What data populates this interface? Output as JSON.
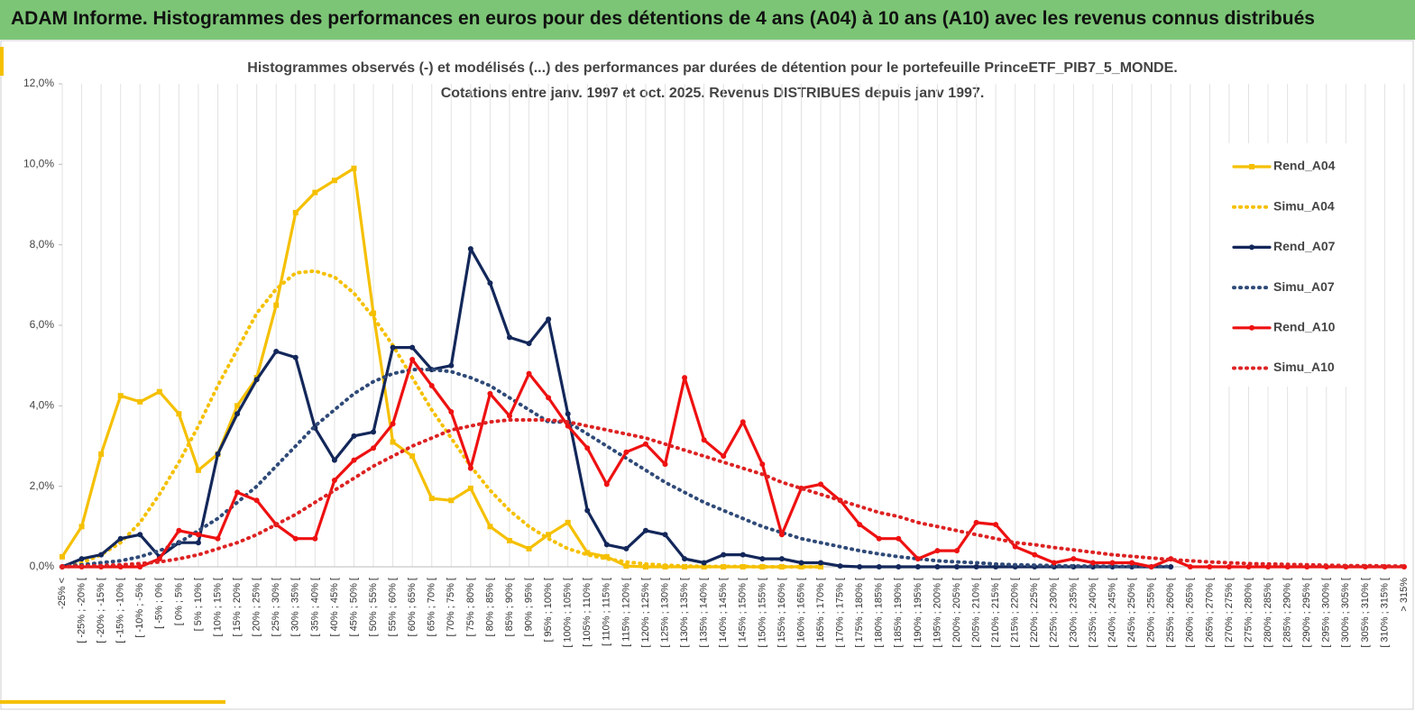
{
  "header": {
    "title": "ADAM Informe. Histogrammes des performances en euros pour des détentions de 4 ans (A04) à 10 ans (A10) avec les revenus connus distribués"
  },
  "chart_data": {
    "type": "line",
    "title": [
      "Histogrammes observés (-) et modélisés (...) des performances par durées de détention pour le portefeuille PrinceETF_PIB7_5_MONDE.",
      "Cotations entre janv. 1997 et oct. 2025. Revenus DISTRIBUES depuis janv 1997."
    ],
    "categories": [
      "-25% <",
      "[ -25% ; -20% [",
      "[ -20% ; -15% [",
      "[ -15% ; -10% [",
      "[ -10% ; -5% [",
      "[ -5% ; 0% [",
      "[ 0% ; 5% [",
      "[ 5% ; 10% [",
      "[ 10% ; 15% [",
      "[ 15% ; 20% [",
      "[ 20% ; 25% [",
      "[ 25% ; 30% [",
      "[ 30% ; 35% [",
      "[ 35% ; 40% [",
      "[ 40% ; 45% [",
      "[ 45% ; 50% [",
      "[ 50% ; 55% [",
      "[ 55% ; 60% [",
      "[ 60% ; 65% [",
      "[ 65% ; 70% [",
      "[ 70% ; 75% [",
      "[ 75% ; 80% [",
      "[ 80% ; 85% [",
      "[ 85% ; 90% [",
      "[ 90% ; 95% [",
      "[ 95% ; 100% [",
      "[ 100% ; 105% [",
      "[ 105% ; 110% [",
      "[ 110% ; 115% [",
      "[ 115% ; 120% [",
      "[ 120% ; 125% [",
      "[ 125% ; 130% [",
      "[ 130% ; 135% [",
      "[ 135% ; 140% [",
      "[ 140% ; 145% [",
      "[ 145% ; 150% [",
      "[ 150% ; 155% [",
      "[ 155% ; 160% [",
      "[ 160% ; 165% [",
      "[ 165% ; 170% [",
      "[ 170% ; 175% [",
      "[ 175% ; 180% [",
      "[ 180% ; 185% [",
      "[ 185% ; 190% [",
      "[ 190% ; 195% [",
      "[ 195% ; 200% [",
      "[ 200% ; 205% [",
      "[ 205% ; 210% [",
      "[ 210% ; 215% [",
      "[ 215% ; 220% [",
      "[ 220% ; 225% [",
      "[ 225% ; 230% [",
      "[ 230% ; 235% [",
      "[ 235% ; 240% [",
      "[ 240% ; 245% [",
      "[ 245% ; 250% [",
      "[ 250% ; 255% [",
      "[ 255% ; 260% [",
      "[ 260% ; 265% [",
      "[ 265% ; 270% [",
      "[ 270% ; 275% [",
      "[ 275% ; 280% [",
      "[ 280% ; 285% [",
      "[ 285% ; 290% [",
      "[ 290% ; 295% [",
      "[ 295% ; 300% [",
      "[ 300% ; 305% [",
      "[ 305% ; 310% [",
      "[ 310% ; 315% [",
      "> 315%"
    ],
    "series": [
      {
        "name": "Rend_A04",
        "color": "#f5c000",
        "style": "solid",
        "marker": "square",
        "values": [
          0.25,
          1.0,
          2.8,
          4.25,
          4.1,
          4.35,
          3.8,
          2.4,
          2.8,
          4.0,
          4.7,
          6.5,
          8.8,
          9.3,
          9.6,
          9.9,
          6.3,
          3.1,
          2.75,
          1.7,
          1.65,
          1.95,
          1.0,
          0.65,
          0.45,
          0.8,
          1.1,
          0.35,
          0.25,
          0.02,
          0,
          0,
          0,
          0,
          0,
          0,
          0,
          0,
          0,
          0,
          null,
          null,
          null,
          null,
          null,
          null,
          null,
          null,
          null,
          null,
          null,
          null,
          null,
          null,
          null,
          null,
          null,
          null,
          null,
          null,
          null,
          null,
          null,
          null,
          null,
          null,
          null,
          null,
          null,
          null
        ]
      },
      {
        "name": "Simu_A04",
        "color": "#f5c000",
        "style": "dotted",
        "marker": "none",
        "values": [
          0,
          0.1,
          0.3,
          0.6,
          1.1,
          1.8,
          2.6,
          3.5,
          4.5,
          5.4,
          6.3,
          6.9,
          7.3,
          7.35,
          7.2,
          6.8,
          6.2,
          5.5,
          4.7,
          3.9,
          3.2,
          2.5,
          1.9,
          1.4,
          1.0,
          0.7,
          0.45,
          0.3,
          0.2,
          0.12,
          0.07,
          0.04,
          0.02,
          0.01,
          0.01,
          0.01,
          0,
          0,
          0,
          0,
          null,
          null,
          null,
          null,
          null,
          null,
          null,
          null,
          null,
          null,
          null,
          null,
          null,
          null,
          null,
          null,
          null,
          null,
          null,
          null,
          null,
          null,
          null,
          null,
          null,
          null,
          null,
          null,
          null,
          null
        ]
      },
      {
        "name": "Rend_A07",
        "color": "#13275a",
        "style": "solid",
        "marker": "circle",
        "values": [
          0,
          0.2,
          0.3,
          0.7,
          0.8,
          0.25,
          0.6,
          0.6,
          2.8,
          3.8,
          4.65,
          5.35,
          5.2,
          3.45,
          2.65,
          3.25,
          3.35,
          5.45,
          5.45,
          4.9,
          5.0,
          7.9,
          7.05,
          5.7,
          5.55,
          6.15,
          3.8,
          1.4,
          0.55,
          0.45,
          0.9,
          0.8,
          0.2,
          0.1,
          0.3,
          0.3,
          0.2,
          0.2,
          0.1,
          0.1,
          0.02,
          0,
          0,
          0,
          0,
          0,
          0,
          0,
          0,
          0,
          0,
          0,
          0,
          0,
          0,
          0,
          0,
          0,
          null,
          null,
          null,
          null,
          null,
          null,
          null,
          null,
          null,
          null,
          null,
          null
        ]
      },
      {
        "name": "Simu_A07",
        "color": "#2f4a78",
        "style": "dotted",
        "marker": "none",
        "values": [
          0.02,
          0.05,
          0.1,
          0.15,
          0.25,
          0.4,
          0.6,
          0.9,
          1.2,
          1.6,
          2.0,
          2.5,
          3.0,
          3.5,
          3.9,
          4.3,
          4.6,
          4.8,
          4.9,
          4.9,
          4.85,
          4.7,
          4.5,
          4.2,
          3.9,
          3.6,
          3.6,
          3.3,
          3.0,
          2.7,
          2.4,
          2.1,
          1.85,
          1.6,
          1.4,
          1.2,
          1.0,
          0.85,
          0.7,
          0.6,
          0.5,
          0.4,
          0.32,
          0.25,
          0.2,
          0.15,
          0.12,
          0.1,
          0.07,
          0.05,
          0.04,
          0.03,
          0.02,
          0.02,
          0.01,
          0.01,
          0.01,
          0.01,
          null,
          null,
          null,
          null,
          null,
          null,
          null,
          null,
          null,
          null,
          null,
          null
        ]
      },
      {
        "name": "Rend_A10",
        "color": "#ee1111",
        "style": "solid",
        "marker": "circle",
        "values": [
          0,
          0,
          0,
          0,
          0,
          0.2,
          0.9,
          0.8,
          0.7,
          1.85,
          1.65,
          1.05,
          0.7,
          0.7,
          2.15,
          2.65,
          2.95,
          3.55,
          5.15,
          4.5,
          3.85,
          2.45,
          4.3,
          3.75,
          4.8,
          4.2,
          3.5,
          2.95,
          2.05,
          2.85,
          3.05,
          2.55,
          4.7,
          3.15,
          2.75,
          3.6,
          2.55,
          0.8,
          1.95,
          2.05,
          1.65,
          1.05,
          0.7,
          0.7,
          0.2,
          0.4,
          0.4,
          1.1,
          1.05,
          0.5,
          0.3,
          0.1,
          0.2,
          0.1,
          0.1,
          0.1,
          0,
          0.2,
          0,
          0,
          0,
          0,
          0,
          0,
          0,
          0,
          0,
          0,
          0,
          0
        ]
      },
      {
        "name": "Simu_A10",
        "color": "#dd2222",
        "style": "dotted",
        "marker": "none",
        "values": [
          0,
          0.02,
          0.03,
          0.05,
          0.08,
          0.12,
          0.2,
          0.3,
          0.45,
          0.6,
          0.8,
          1.05,
          1.3,
          1.6,
          1.9,
          2.2,
          2.5,
          2.75,
          3.0,
          3.2,
          3.4,
          3.5,
          3.6,
          3.65,
          3.65,
          3.65,
          3.6,
          3.5,
          3.4,
          3.3,
          3.2,
          3.05,
          2.9,
          2.75,
          2.6,
          2.45,
          2.3,
          2.1,
          1.95,
          1.8,
          1.65,
          1.5,
          1.35,
          1.25,
          1.1,
          1.0,
          0.9,
          0.8,
          0.7,
          0.6,
          0.55,
          0.48,
          0.42,
          0.36,
          0.3,
          0.26,
          0.22,
          0.18,
          0.15,
          0.12,
          0.1,
          0.08,
          0.07,
          0.06,
          0.05,
          0.04,
          0.03,
          0.03,
          0.02,
          0.02
        ]
      }
    ],
    "ylim": [
      0,
      12
    ],
    "yticks": [
      {
        "value": 0,
        "label": "0,0%"
      },
      {
        "value": 2,
        "label": "2,0%"
      },
      {
        "value": 4,
        "label": "4,0%"
      },
      {
        "value": 6,
        "label": "6,0%"
      },
      {
        "value": 8,
        "label": "8,0%"
      },
      {
        "value": 10,
        "label": "10,0%"
      },
      {
        "value": 12,
        "label": "12,0%"
      }
    ],
    "legend": "right"
  }
}
